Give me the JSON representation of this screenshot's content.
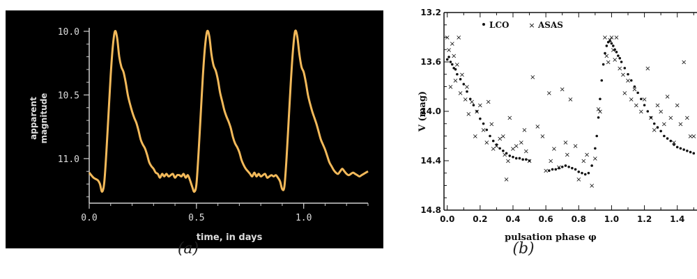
{
  "captions": {
    "a": "(a)",
    "b": "(b)"
  },
  "chart_data": [
    {
      "type": "line",
      "panel": "a",
      "xlabel": "time, in days",
      "ylabel": [
        "apparent",
        "magnitude"
      ],
      "xlim": [
        0,
        1.3
      ],
      "ylim": [
        10.0,
        11.35
      ],
      "y_inverted": true,
      "xticks": [
        "0.0",
        "0.5",
        "1.0"
      ],
      "xtick_values": [
        0,
        0.5,
        1.0
      ],
      "yticks": [
        "10.0",
        "10.5",
        "11.0"
      ],
      "ytick_values": [
        10.0,
        10.5,
        11.0
      ],
      "colors": {
        "background": "#000000",
        "line": "#f2b95a",
        "axis": "#cfcfcf",
        "text": "#dddddd"
      },
      "series": [
        {
          "x": [
            0.0,
            0.02,
            0.04,
            0.05,
            0.06,
            0.07,
            0.08,
            0.09,
            0.1,
            0.11,
            0.12,
            0.13,
            0.14,
            0.15,
            0.16,
            0.17,
            0.18,
            0.19,
            0.2,
            0.21,
            0.22,
            0.23,
            0.24,
            0.25,
            0.26,
            0.27,
            0.28,
            0.29,
            0.3,
            0.31,
            0.32,
            0.33,
            0.34,
            0.35,
            0.36,
            0.37,
            0.38,
            0.39,
            0.4,
            0.41,
            0.42,
            0.43,
            0.44,
            0.45,
            0.46,
            0.47,
            0.48,
            0.49,
            0.5,
            0.51,
            0.52,
            0.53,
            0.54,
            0.55,
            0.56,
            0.57,
            0.58,
            0.59,
            0.6,
            0.61,
            0.62,
            0.63,
            0.64,
            0.65,
            0.66,
            0.67,
            0.68,
            0.69,
            0.7,
            0.71,
            0.72,
            0.73,
            0.74,
            0.75,
            0.76,
            0.77,
            0.78,
            0.79,
            0.8,
            0.81,
            0.82,
            0.83,
            0.84,
            0.85,
            0.86,
            0.87,
            0.88,
            0.89,
            0.9,
            0.91,
            0.92,
            0.93,
            0.94,
            0.95,
            0.96,
            0.97,
            0.98,
            0.99,
            1.0,
            1.01,
            1.02,
            1.03,
            1.04,
            1.05,
            1.06,
            1.07,
            1.08,
            1.09,
            1.1,
            1.11,
            1.12,
            1.13,
            1.14,
            1.15,
            1.16,
            1.17,
            1.18,
            1.19,
            1.2,
            1.21,
            1.22,
            1.23,
            1.24,
            1.25,
            1.26,
            1.27,
            1.28,
            1.29,
            1.3
          ],
          "values": [
            11.11,
            11.15,
            11.17,
            11.2,
            11.26,
            11.19,
            10.95,
            10.65,
            10.35,
            10.12,
            10.0,
            10.05,
            10.2,
            10.28,
            10.32,
            10.4,
            10.5,
            10.57,
            10.63,
            10.68,
            10.72,
            10.78,
            10.85,
            10.89,
            10.92,
            10.97,
            11.03,
            11.06,
            11.08,
            11.11,
            11.12,
            11.15,
            11.12,
            11.14,
            11.12,
            11.14,
            11.13,
            11.12,
            11.15,
            11.13,
            11.13,
            11.14,
            11.12,
            11.15,
            11.13,
            11.17,
            11.22,
            11.26,
            11.2,
            10.95,
            10.65,
            10.35,
            10.12,
            10.0,
            10.04,
            10.18,
            10.27,
            10.31,
            10.38,
            10.48,
            10.55,
            10.62,
            10.67,
            10.71,
            10.76,
            10.83,
            10.88,
            10.91,
            10.95,
            11.01,
            11.05,
            11.08,
            11.1,
            11.12,
            11.14,
            11.11,
            11.14,
            11.12,
            11.14,
            11.13,
            11.12,
            11.15,
            11.14,
            11.13,
            11.14,
            11.13,
            11.15,
            11.18,
            11.24,
            11.22,
            11.0,
            10.7,
            10.4,
            10.15,
            10.0,
            10.04,
            10.18,
            10.28,
            10.32,
            10.4,
            10.5,
            10.57,
            10.63,
            10.68,
            10.73,
            10.79,
            10.85,
            10.89,
            10.93,
            10.98,
            11.03,
            11.06,
            11.09,
            11.11,
            11.12,
            11.1,
            11.08,
            11.1,
            11.12,
            11.13,
            11.12,
            11.11,
            11.12,
            11.13,
            11.14,
            11.13,
            11.12,
            11.11,
            11.1
          ]
        }
      ]
    },
    {
      "type": "scatter",
      "panel": "b",
      "xlabel": "pulsation phase φ",
      "ylabel": "V (mag)",
      "xlim": [
        -0.02,
        1.52
      ],
      "ylim": [
        13.2,
        14.8
      ],
      "y_inverted": true,
      "xticks": [
        "0.0",
        "0.2",
        "0.4",
        "0.6",
        "0.8",
        "1.0",
        "1.2",
        "1.4"
      ],
      "xtick_values": [
        0.0,
        0.2,
        0.4,
        0.6,
        0.8,
        1.0,
        1.2,
        1.4
      ],
      "yticks": [
        "13.2",
        "13.6",
        "14.0",
        "14.4",
        "14.8"
      ],
      "ytick_values": [
        13.2,
        13.6,
        14.0,
        14.4,
        14.8
      ],
      "legend": {
        "placement": "top-left",
        "entries": [
          "LCO",
          "ASAS"
        ]
      },
      "series": [
        {
          "name": "LCO",
          "marker": "dot",
          "x": [
            0.0,
            0.01,
            0.02,
            0.03,
            0.04,
            0.05,
            0.06,
            0.08,
            0.1,
            0.12,
            0.14,
            0.16,
            0.18,
            0.2,
            0.22,
            0.24,
            0.26,
            0.28,
            0.3,
            0.32,
            0.34,
            0.36,
            0.38,
            0.4,
            0.42,
            0.44,
            0.46,
            0.48,
            0.5,
            0.62,
            0.64,
            0.66,
            0.68,
            0.7,
            0.72,
            0.74,
            0.76,
            0.78,
            0.8,
            0.82,
            0.84,
            0.86,
            0.88,
            0.9,
            0.91,
            0.92,
            0.93,
            0.94,
            0.95,
            0.96,
            0.97,
            0.98,
            0.99,
            1.0,
            1.01,
            1.02,
            1.03,
            1.04,
            1.05,
            1.06,
            1.08,
            1.1,
            1.12,
            1.14,
            1.16,
            1.18,
            1.2,
            1.22,
            1.24,
            1.26,
            1.28,
            1.3,
            1.32,
            1.34,
            1.36,
            1.38,
            1.4,
            1.42,
            1.44,
            1.46,
            1.48,
            1.5
          ],
          "values": [
            13.58,
            13.56,
            13.6,
            13.62,
            13.65,
            13.66,
            13.7,
            13.74,
            13.78,
            13.84,
            13.9,
            13.95,
            14.0,
            14.06,
            14.1,
            14.15,
            14.2,
            14.24,
            14.27,
            14.3,
            14.32,
            14.34,
            14.36,
            14.37,
            14.38,
            14.38,
            14.39,
            14.39,
            14.4,
            14.48,
            14.47,
            14.47,
            14.46,
            14.45,
            14.44,
            14.45,
            14.46,
            14.47,
            14.49,
            14.5,
            14.51,
            14.5,
            14.44,
            14.3,
            14.2,
            14.05,
            13.9,
            13.75,
            13.62,
            13.53,
            13.47,
            13.44,
            13.43,
            13.45,
            13.47,
            13.5,
            13.52,
            13.55,
            13.57,
            13.6,
            13.65,
            13.7,
            13.75,
            13.8,
            13.85,
            13.9,
            13.95,
            14.0,
            14.05,
            14.1,
            14.13,
            14.16,
            14.2,
            14.22,
            14.24,
            14.27,
            14.29,
            14.3,
            14.31,
            14.32,
            14.33,
            14.34
          ]
        },
        {
          "name": "ASAS",
          "marker": "x",
          "x": [
            0.0,
            0.01,
            0.02,
            0.03,
            0.04,
            0.05,
            0.06,
            0.07,
            0.08,
            0.09,
            0.11,
            0.12,
            0.13,
            0.15,
            0.17,
            0.18,
            0.2,
            0.22,
            0.24,
            0.25,
            0.27,
            0.28,
            0.3,
            0.32,
            0.34,
            0.35,
            0.37,
            0.38,
            0.4,
            0.42,
            0.45,
            0.48,
            0.5,
            0.52,
            0.55,
            0.58,
            0.62,
            0.63,
            0.65,
            0.68,
            0.7,
            0.72,
            0.73,
            0.75,
            0.78,
            0.8,
            0.83,
            0.85,
            0.88,
            0.9,
            0.93,
            0.96,
            0.97,
            0.98,
            0.99,
            1.0,
            1.01,
            1.02,
            1.03,
            1.05,
            1.07,
            1.08,
            1.1,
            1.12,
            1.14,
            1.15,
            1.18,
            1.2,
            1.22,
            1.24,
            1.26,
            1.28,
            1.3,
            1.32,
            1.34,
            1.36,
            1.38,
            1.4,
            1.42,
            1.44,
            1.46,
            1.48,
            1.5,
            0.36,
            0.47,
            0.6,
            0.92
          ],
          "values": [
            13.4,
            13.5,
            13.8,
            13.45,
            13.55,
            13.75,
            13.62,
            13.4,
            13.85,
            13.7,
            13.9,
            13.8,
            14.02,
            13.92,
            14.2,
            14.0,
            13.95,
            14.15,
            14.25,
            13.92,
            14.1,
            14.3,
            14.28,
            14.22,
            14.2,
            14.35,
            14.4,
            14.05,
            14.3,
            14.28,
            14.25,
            14.32,
            14.4,
            13.72,
            14.12,
            14.2,
            13.85,
            14.4,
            14.3,
            14.45,
            13.82,
            14.25,
            14.35,
            13.9,
            14.28,
            14.55,
            14.4,
            14.35,
            14.6,
            14.38,
            14.0,
            13.4,
            13.55,
            13.6,
            13.42,
            13.4,
            13.5,
            13.58,
            13.4,
            13.65,
            13.7,
            13.85,
            13.75,
            13.9,
            13.82,
            13.95,
            14.0,
            13.9,
            13.65,
            14.05,
            14.15,
            13.95,
            14.0,
            14.1,
            13.88,
            14.05,
            14.25,
            13.95,
            14.1,
            13.6,
            14.05,
            14.2,
            14.2,
            14.55,
            14.15,
            14.48,
            13.98
          ]
        }
      ]
    }
  ]
}
